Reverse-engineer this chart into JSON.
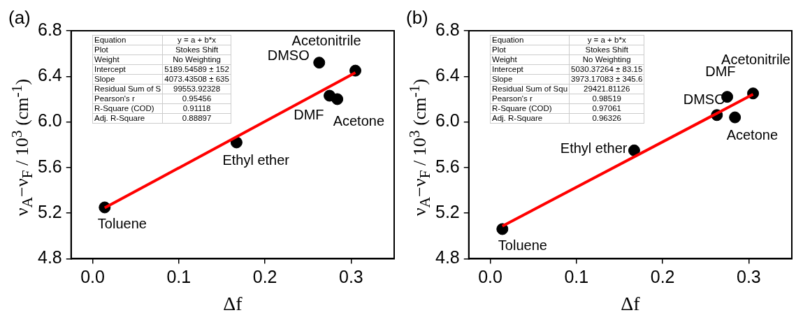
{
  "chart_data": [
    {
      "type": "scatter",
      "title": "(a)",
      "xlabel": "Δf",
      "ylabel": "ν$_{A}$−ν$_{F}$ / 10$^{3}$ (cm$^{-1}$)",
      "xlim": [
        -0.025,
        0.35
      ],
      "xticks": [
        {
          "value": 0,
          "label": "0.0"
        },
        0.1,
        0.2,
        0.3
      ],
      "ylim": [
        4.8,
        6.8
      ],
      "yticks": [
        4.8,
        5.2,
        5.6,
        {
          "value": 6,
          "label": "6.0"
        },
        6.4,
        6.8
      ],
      "grid": false,
      "legend": false,
      "marker": "circle",
      "series": [
        {
          "color": "#000000",
          "x": [
            0.014,
            0.167,
            0.263,
            0.275,
            0.284,
            0.305
          ],
          "values": [
            5.25,
            5.82,
            6.52,
            6.23,
            6.2,
            6.45
          ]
        },
        {
          "type": "line",
          "color": "#ff0000",
          "marker": "none",
          "line_style": "solid",
          "x": [
            0.014,
            0.305
          ],
          "values": [
            5.246,
            6.432
          ]
        }
      ],
      "annotations": [
        "Equation",
        "y = a + b*x",
        "Plot",
        "Stokes Shift",
        "Weight",
        "No Weighting",
        "Intercept",
        "5189.54589 ± 152",
        "Slope",
        "4073.43508 ± 635",
        "Residual Sum of S",
        "99553.92328",
        "Pearson's r",
        "0.95456",
        "R-Square (COD)",
        "0.91118",
        "Adj. R-Square",
        "0.88897",
        {
          "text": "Toluene",
          "x": 0.014,
          "y": 5.25
        },
        {
          "text": "Ethyl ether",
          "x": 0.167,
          "y": 5.82
        },
        {
          "text": "DMSO",
          "x": 0.263,
          "y": 6.52
        },
        {
          "text": "DMF",
          "x": 0.275,
          "y": 6.23
        },
        {
          "text": "Acetone",
          "x": 0.284,
          "y": 6.2
        },
        {
          "text": "Acetonitrile",
          "x": 0.305,
          "y": 6.45
        }
      ]
    },
    {
      "type": "scatter",
      "title": "(b)",
      "xlabel": "Δf",
      "ylabel": "ν$_{A}$−ν$_{F}$ / 10$^{3}$ (cm$^{-1}$)",
      "xlim": [
        -0.025,
        0.35
      ],
      "xticks": [
        {
          "value": 0,
          "label": "0.0"
        },
        0.1,
        0.2,
        0.3
      ],
      "ylim": [
        4.8,
        6.8
      ],
      "yticks": [
        4.8,
        5.2,
        5.6,
        {
          "value": 6,
          "label": "6.0"
        },
        6.4,
        6.8
      ],
      "grid": false,
      "legend": false,
      "marker": "circle",
      "series": [
        {
          "color": "#000000",
          "x": [
            0.014,
            0.167,
            0.263,
            0.275,
            0.284,
            0.305
          ],
          "values": [
            5.06,
            5.75,
            6.06,
            6.22,
            6.04,
            6.25
          ]
        },
        {
          "type": "line",
          "color": "#ff0000",
          "marker": "none",
          "line_style": "solid",
          "x": [
            0.014,
            0.305
          ],
          "values": [
            5.086,
            6.242
          ]
        }
      ],
      "annotations": [
        "Equation",
        "y = a + b*x",
        "Plot",
        "Stokes Shift",
        "Weight",
        "No Weighting",
        "Intercept",
        "5030.37264 ± 83.15",
        "Slope",
        "3973.17083 ± 345.6",
        "Residual Sum of Squ",
        "29421.81126",
        "Pearson's r",
        "0.98519",
        "R-Square (COD)",
        "0.97061",
        "Adj. R-Square",
        "0.96326",
        {
          "text": "Toluene",
          "x": 0.014,
          "y": 5.06
        },
        {
          "text": "Ethyl ether",
          "x": 0.167,
          "y": 5.75
        },
        {
          "text": "DMSO",
          "x": 0.263,
          "y": 6.06
        },
        {
          "text": "DMF",
          "x": 0.275,
          "y": 6.22
        },
        {
          "text": "Acetone",
          "x": 0.284,
          "y": 6.04
        },
        {
          "text": "Acetonitrile",
          "x": 0.305,
          "y": 6.25
        }
      ]
    }
  ]
}
